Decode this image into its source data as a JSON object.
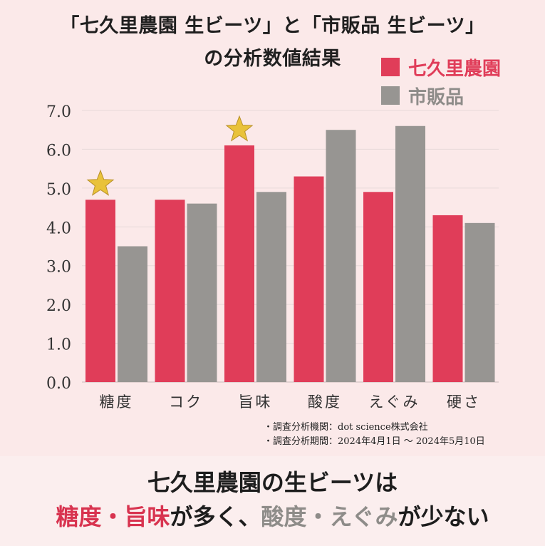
{
  "title_line1": "「七久里農園 生ビーツ」と「市販品 生ビーツ」",
  "title_line2": "の分析数値結果",
  "colors": {
    "primary": "#e03d59",
    "secondary": "#979592",
    "star": "#e9c23a"
  },
  "legend": [
    {
      "label": "七久里農園",
      "color": "#e03d59"
    },
    {
      "label": "市販品",
      "color": "#979592"
    }
  ],
  "chart_data": {
    "type": "bar",
    "categories": [
      "糖度",
      "コク",
      "旨味",
      "酸度",
      "えぐみ",
      "硬さ"
    ],
    "series": [
      {
        "name": "七久里農園",
        "values": [
          4.7,
          4.7,
          6.1,
          5.3,
          4.9,
          4.3
        ]
      },
      {
        "name": "市販品",
        "values": [
          3.5,
          4.6,
          4.9,
          6.5,
          6.6,
          4.1
        ]
      }
    ],
    "yticks": [
      "0.0",
      "1.0",
      "2.0",
      "3.0",
      "4.0",
      "5.0",
      "6.0",
      "7.0"
    ],
    "ylim": [
      0,
      7
    ],
    "starred_categories": [
      "糖度",
      "旨味"
    ],
    "grid": true
  },
  "notes": [
    "・調査分析機関：dot science株式会社",
    "・調査分析期間：2024年4月1日 〜 2024年5月10日"
  ],
  "bottom": {
    "line1": "七久里農園の生ビーツは",
    "line2": [
      {
        "text": "糖度・旨味",
        "style": "red"
      },
      {
        "text": "が多く、",
        "style": "dark"
      },
      {
        "text": "酸度・えぐみ",
        "style": "gray"
      },
      {
        "text": "が少ない",
        "style": "dark"
      }
    ]
  }
}
